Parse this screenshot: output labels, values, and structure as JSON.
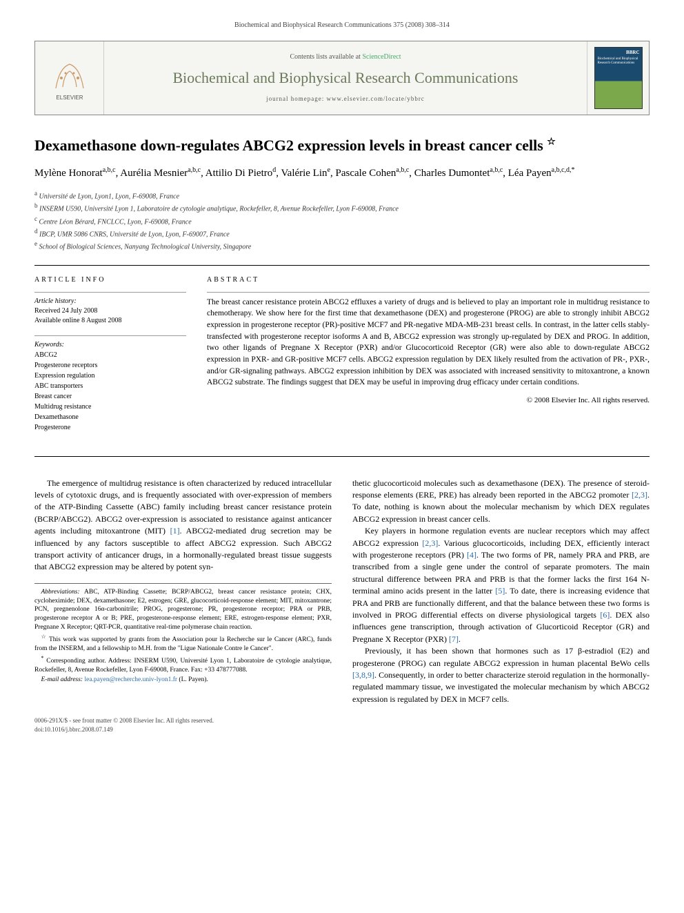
{
  "page_header": "Biochemical and Biophysical Research Communications 375 (2008) 308–314",
  "banner": {
    "contents_prefix": "Contents lists available at ",
    "contents_link": "ScienceDirect",
    "journal": "Biochemical and Biophysical Research Communications",
    "homepage_prefix": "journal homepage: ",
    "homepage": "www.elsevier.com/locate/ybbrc",
    "publisher_label": "ELSEVIER",
    "cover_text": "Biochemical and Biophysical Research Communications"
  },
  "title": "Dexamethasone down-regulates ABCG2 expression levels in breast cancer cells",
  "title_star": "☆",
  "authors_html": "Mylène Honorat<sup>a,b,c</sup>, Aurélia Mesnier<sup>a,b,c</sup>, Attilio Di Pietro<sup>d</sup>, Valérie Lin<sup>e</sup>, Pascale Cohen<sup>a,b,c</sup>, Charles Dumontet<sup>a,b,c</sup>, Léa Payen<sup>a,b,c,d,*</sup>",
  "affiliations": [
    {
      "key": "a",
      "text": "Université de Lyon, Lyon1, Lyon, F-69008, France"
    },
    {
      "key": "b",
      "text": "INSERM U590, Université Lyon 1, Laboratoire de cytologie analytique, Rockefeller, 8, Avenue Rockefeller, Lyon F-69008, France"
    },
    {
      "key": "c",
      "text": "Centre Léon Bérard, FNCLCC, Lyon, F-69008, France"
    },
    {
      "key": "d",
      "text": "IBCP, UMR 5086 CNRS, Université de Lyon, Lyon, F-69007, France"
    },
    {
      "key": "e",
      "text": "School of Biological Sciences, Nanyang Technological University, Singapore"
    }
  ],
  "info": {
    "heading": "ARTICLE INFO",
    "history_label": "Article history:",
    "received": "Received 24 July 2008",
    "online": "Available online 8 August 2008",
    "keywords_label": "Keywords:",
    "keywords": [
      "ABCG2",
      "Progesterone receptors",
      "Expression regulation",
      "ABC transporters",
      "Breast cancer",
      "Multidrug resistance",
      "Dexamethasone",
      "Progesterone"
    ]
  },
  "abstract": {
    "heading": "ABSTRACT",
    "text": "The breast cancer resistance protein ABCG2 effluxes a variety of drugs and is believed to play an important role in multidrug resistance to chemotherapy. We show here for the first time that dexamethasone (DEX) and progesterone (PROG) are able to strongly inhibit ABCG2 expression in progesterone receptor (PR)-positive MCF7 and PR-negative MDA-MB-231 breast cells. In contrast, in the latter cells stably-transfected with progesterone receptor isoforms A and B, ABCG2 expression was strongly up-regulated by DEX and PROG. In addition, two other ligands of Pregnane X Receptor (PXR) and/or Glucocorticoid Receptor (GR) were also able to down-regulate ABCG2 expression in PXR- and GR-positive MCF7 cells. ABCG2 expression regulation by DEX likely resulted from the activation of PR-, PXR-, and/or GR-signaling pathways. ABCG2 expression inhibition by DEX was associated with increased sensitivity to mitoxantrone, a known ABCG2 substrate. The findings suggest that DEX may be useful in improving drug efficacy under certain conditions.",
    "copyright": "© 2008 Elsevier Inc. All rights reserved."
  },
  "body": {
    "p1": "The emergence of multidrug resistance is often characterized by reduced intracellular levels of cytotoxic drugs, and is frequently associated with over-expression of members of the ATP-Binding Cassette (ABC) family including breast cancer resistance protein (BCRP/ABCG2). ABCG2 over-expression is associated to resistance against anticancer agents including mitoxantrone (MIT) [1]. ABCG2-mediated drug secretion may be influenced by any factors susceptible to affect ABCG2 expression. Such ABCG2 transport activity of anticancer drugs, in a hormonally-regulated breast tissue suggests that ABCG2 expression may be altered by potent syn-",
    "p2": "thetic glucocorticoid molecules such as dexamethasone (DEX). The presence of steroid-response elements (ERE, PRE) has already been reported in the ABCG2 promoter [2,3]. To date, nothing is known about the molecular mechanism by which DEX regulates ABCG2 expression in breast cancer cells.",
    "p3": "Key players in hormone regulation events are nuclear receptors which may affect ABCG2 expression [2,3]. Various glucocorticoids, including DEX, efficiently interact with progesterone receptors (PR) [4]. The two forms of PR, namely PRA and PRB, are transcribed from a single gene under the control of separate promoters. The main structural difference between PRA and PRB is that the former lacks the first 164 N-terminal amino acids present in the latter [5]. To date, there is increasing evidence that PRA and PRB are functionally different, and that the balance between these two forms is involved in PROG differential effects on diverse physiological targets [6]. DEX also influences gene transcription, through activation of Glucorticoid Receptor (GR) and Pregnane X Receptor (PXR) [7].",
    "p4": "Previously, it has been shown that hormones such as 17 β-estradiol (E2) and progesterone (PROG) can regulate ABCG2 expression in human placental BeWo cells [3,8,9]. Consequently, in order to better characterize steroid regulation in the hormonally-regulated mammary tissue, we investigated the molecular mechanism by which ABCG2 expression is regulated by DEX in MCF7 cells."
  },
  "footnotes": {
    "abbrev_label": "Abbreviations:",
    "abbrev": "ABC, ATP-Binding Cassette; BCRP/ABCG2, breast cancer resistance protein; CHX, cycloheximide; DEX, dexamethasone; E2, estrogen; GRE, glucocorticoid-response element; MIT, mitoxantrone; PCN, pregnenolone 16α-carbonitrile; PROG, progesterone; PR, progesterone receptor; PRA or PRB, progesterone receptor A or B; PRE, progesterone-response element; ERE, estrogen-response element; PXR, Pregnane X Receptor; QRT-PCR, quantitative real-time polymerase chain reaction.",
    "funding_mark": "☆",
    "funding": "This work was supported by grants from the Association pour la Recherche sur le Cancer (ARC), funds from the INSERM, and a fellowship to M.H. from the \"Ligue Nationale Contre le Cancer\".",
    "corr_mark": "*",
    "corr": "Corresponding author. Address: INSERM U590, Université Lyon 1, Laboratoire de cytologie analytique, Rockefeller, 8, Avenue Rockefeller, Lyon F-69008, France. Fax: +33 478777088.",
    "email_label": "E-mail address:",
    "email": "lea.payen@recherche.univ-lyon1.fr",
    "email_who": "(L. Payen)."
  },
  "footer": {
    "issn": "0006-291X/$ - see front matter © 2008 Elsevier Inc. All rights reserved.",
    "doi": "doi:10.1016/j.bbrc.2008.07.149"
  },
  "colors": {
    "link": "#2a6aa8",
    "journal_title": "#6a7a5a",
    "banner_bg": "#f5f5f2"
  }
}
